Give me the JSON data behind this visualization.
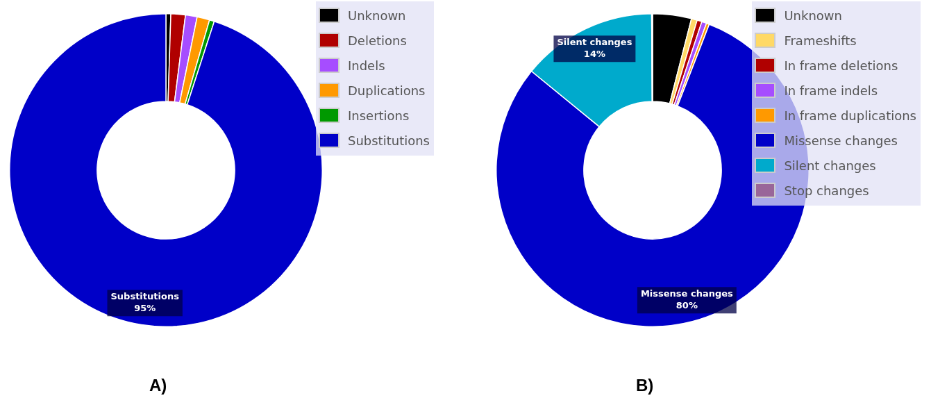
{
  "chart_data": [
    {
      "type": "donut",
      "categories": [
        "Unknown",
        "Deletions",
        "Indels",
        "Duplications",
        "Insertions",
        "Substitutions"
      ],
      "values": [
        0.5,
        1.5,
        1.2,
        1.3,
        0.5,
        95
      ],
      "colors": [
        "#000000",
        "#b00000",
        "#a64dff",
        "#ff9900",
        "#009900",
        "#0000c8"
      ],
      "value_labels": [
        null,
        null,
        null,
        null,
        null,
        "95%"
      ],
      "legend": "top right",
      "annotations": [
        "A)"
      ]
    },
    {
      "type": "donut",
      "categories": [
        "Unknown",
        "Frameshifts",
        "In frame deletions",
        "In frame indels",
        "In frame duplications",
        "Missense changes",
        "Silent changes",
        "Stop changes"
      ],
      "values": [
        4,
        0.6,
        0.5,
        0.5,
        0.3,
        80,
        14,
        0.1
      ],
      "colors": [
        "#000000",
        "#ffd966",
        "#b00000",
        "#a64dff",
        "#ff9900",
        "#0000c8",
        "#00aacc",
        "#996699"
      ],
      "value_labels": [
        null,
        null,
        null,
        null,
        null,
        "80%",
        "14%",
        null
      ],
      "legend": "top right",
      "annotations": [
        "B)"
      ]
    }
  ]
}
